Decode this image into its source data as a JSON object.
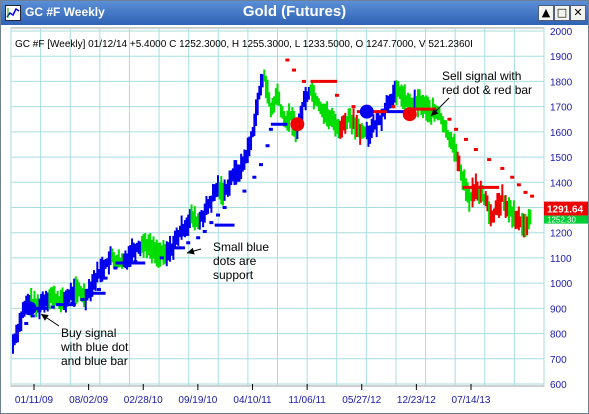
{
  "window": {
    "title": "GC #F Weekly",
    "buttons": {
      "minimize": "▲",
      "restore": "□",
      "close": "✕"
    }
  },
  "chart_data": {
    "type": "bar",
    "title": "Gold (Futures)",
    "info_line": "GC #F [Weekly] 01/12/14  +5.4000 C 1252.3000, H 1255.3000, L 1233.5000, O 1247.7000, V 521.2360I",
    "x_tick_labels": [
      "01/11/09",
      "08/02/09",
      "02/28/10",
      "09/19/10",
      "04/10/11",
      "11/06/11",
      "05/27/12",
      "12/23/12",
      "07/14/13"
    ],
    "y_ticks": [
      600,
      700,
      800,
      900,
      1000,
      1100,
      1200,
      1300,
      1400,
      1500,
      1600,
      1700,
      1800,
      1900,
      2000
    ],
    "ylim": [
      600,
      2000
    ],
    "grid": true,
    "last_price_label": "1291.64",
    "current_price_label": "1252.30",
    "price_path": [
      [
        0,
        760
      ],
      [
        6,
        880
      ],
      [
        10,
        930
      ],
      [
        14,
        905
      ],
      [
        22,
        950
      ],
      [
        30,
        925
      ],
      [
        38,
        970
      ],
      [
        44,
        950
      ],
      [
        48,
        1000
      ],
      [
        54,
        1060
      ],
      [
        60,
        1100
      ],
      [
        66,
        1075
      ],
      [
        72,
        1130
      ],
      [
        80,
        1160
      ],
      [
        86,
        1125
      ],
      [
        92,
        1110
      ],
      [
        96,
        1140
      ],
      [
        102,
        1210
      ],
      [
        108,
        1260
      ],
      [
        112,
        1240
      ],
      [
        118,
        1300
      ],
      [
        124,
        1380
      ],
      [
        128,
        1360
      ],
      [
        132,
        1420
      ],
      [
        138,
        1455
      ],
      [
        144,
        1560
      ],
      [
        148,
        1720
      ],
      [
        152,
        1830
      ],
      [
        156,
        1680
      ],
      [
        160,
        1750
      ],
      [
        164,
        1640
      ],
      [
        168,
        1660
      ],
      [
        172,
        1600
      ],
      [
        176,
        1720
      ],
      [
        180,
        1770
      ],
      [
        186,
        1700
      ],
      [
        192,
        1650
      ],
      [
        198,
        1620
      ],
      [
        204,
        1660
      ],
      [
        210,
        1590
      ],
      [
        216,
        1600
      ],
      [
        222,
        1650
      ],
      [
        228,
        1730
      ],
      [
        234,
        1760
      ],
      [
        240,
        1700
      ],
      [
        246,
        1720
      ],
      [
        252,
        1680
      ],
      [
        258,
        1670
      ],
      [
        262,
        1600
      ],
      [
        266,
        1560
      ],
      [
        270,
        1480
      ],
      [
        272,
        1420
      ],
      [
        276,
        1330
      ],
      [
        280,
        1390
      ],
      [
        286,
        1320
      ],
      [
        290,
        1260
      ],
      [
        296,
        1340
      ],
      [
        300,
        1290
      ],
      [
        306,
        1250
      ],
      [
        310,
        1220
      ],
      [
        313,
        1252
      ]
    ],
    "support_dots": [
      [
        8,
        840
      ],
      [
        12,
        870
      ],
      [
        16,
        890
      ],
      [
        20,
        900
      ],
      [
        24,
        905
      ],
      [
        28,
        915
      ],
      [
        36,
        920
      ],
      [
        42,
        935
      ],
      [
        52,
        975
      ],
      [
        56,
        1020
      ],
      [
        62,
        1060
      ],
      [
        74,
        1085
      ],
      [
        90,
        1100
      ],
      [
        100,
        1140
      ],
      [
        106,
        1160
      ],
      [
        112,
        1180
      ],
      [
        116,
        1205
      ],
      [
        120,
        1240
      ],
      [
        124,
        1270
      ],
      [
        128,
        1300
      ],
      [
        140,
        1365
      ],
      [
        146,
        1420
      ],
      [
        150,
        1470
      ],
      [
        154,
        1545
      ],
      [
        156,
        1610
      ]
    ],
    "resistance_dots": [
      [
        166,
        1885
      ],
      [
        170,
        1845
      ],
      [
        176,
        1800
      ],
      [
        196,
        1745
      ],
      [
        206,
        1700
      ],
      [
        230,
        1700
      ],
      [
        264,
        1650
      ],
      [
        268,
        1610
      ],
      [
        274,
        1570
      ],
      [
        280,
        1530
      ],
      [
        288,
        1490
      ],
      [
        296,
        1455
      ],
      [
        302,
        1420
      ],
      [
        306,
        1390
      ],
      [
        310,
        1360
      ],
      [
        314,
        1345
      ]
    ],
    "support_bars": [
      [
        12,
        900,
        20
      ],
      [
        26,
        915,
        38
      ],
      [
        44,
        960,
        56
      ],
      [
        62,
        1080,
        80
      ],
      [
        96,
        1140,
        104
      ],
      [
        122,
        1230,
        134
      ],
      [
        156,
        1630,
        166
      ],
      [
        226,
        1680,
        238
      ]
    ],
    "resistance_bars": [
      [
        180,
        1800,
        196
      ],
      [
        208,
        1680,
        226
      ],
      [
        240,
        1690,
        256
      ],
      [
        272,
        1380,
        294
      ]
    ],
    "signals": [
      {
        "type": "buy",
        "week": 10,
        "price": 900
      },
      {
        "type": "sell",
        "week": 172,
        "price": 1630
      },
      {
        "type": "buy",
        "week": 214,
        "price": 1680
      },
      {
        "type": "sell",
        "week": 240,
        "price": 1670
      }
    ],
    "annotations": [
      {
        "lines": [
          "Buy signal",
          "with blue dot",
          "and blue bar"
        ]
      },
      {
        "lines": [
          "Small blue",
          "dots are",
          "support"
        ]
      },
      {
        "lines": [
          "Sell signal with",
          "red dot & red bar"
        ]
      }
    ],
    "colors": {
      "up_bar": "#00dd00",
      "down_bar": "#0000ee",
      "red_bar": "#ee0000",
      "grid": "#a8dede",
      "axis_text": "#1a1aaa",
      "price_box": "#ee0000"
    }
  }
}
